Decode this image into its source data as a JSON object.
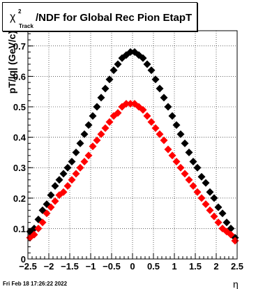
{
  "title": {
    "chi": "χ",
    "superscript": "2",
    "subscript": "Track",
    "text": "/NDF for Global Rec Pion EtapT"
  },
  "footer": {
    "timestamp": "Fri Feb 18 17:26:22 2022"
  },
  "chart_data": {
    "type": "scatter",
    "title": "χ²_Track/NDF for Global Rec Pion EtapT",
    "xlabel": "η",
    "ylabel": "pT/|q| (GeV/c)",
    "xlim": [
      -2.5,
      2.5
    ],
    "ylim": [
      0,
      0.75
    ],
    "x_ticks": [
      -2.5,
      -2,
      -1.5,
      -1,
      -0.5,
      0,
      0.5,
      1,
      1.5,
      2,
      2.5
    ],
    "x_tick_labels": [
      "−2.5",
      "−2",
      "−1.5",
      "−1",
      "−0.5",
      "0",
      "0.5",
      "1",
      "1.5",
      "2",
      "2.5"
    ],
    "y_ticks": [
      0,
      0.1,
      0.2,
      0.3,
      0.4,
      0.5,
      0.6,
      0.7
    ],
    "y_tick_labels": [
      "0",
      "0.1",
      "0.2",
      "0.3",
      "0.4",
      "0.5",
      "0.6",
      "0.7"
    ],
    "grid": true,
    "marker": "diamond",
    "series": [
      {
        "color": "#000000",
        "x": [
          -2.45,
          -2.35,
          -2.25,
          -2.15,
          -2.05,
          -1.95,
          -1.85,
          -1.75,
          -1.65,
          -1.55,
          -1.45,
          -1.35,
          -1.25,
          -1.15,
          -1.05,
          -0.95,
          -0.85,
          -0.75,
          -0.65,
          -0.55,
          -0.45,
          -0.35,
          -0.25,
          -0.15,
          -0.05,
          0.05,
          0.15,
          0.25,
          0.35,
          0.45,
          0.55,
          0.65,
          0.75,
          0.85,
          0.95,
          1.05,
          1.15,
          1.25,
          1.35,
          1.45,
          1.55,
          1.65,
          1.75,
          1.85,
          1.95,
          2.05,
          2.15,
          2.25,
          2.35,
          2.45
        ],
        "y": [
          0.09,
          0.1,
          0.13,
          0.16,
          0.18,
          0.21,
          0.24,
          0.26,
          0.28,
          0.3,
          0.32,
          0.35,
          0.38,
          0.41,
          0.44,
          0.47,
          0.5,
          0.53,
          0.56,
          0.59,
          0.62,
          0.64,
          0.66,
          0.67,
          0.68,
          0.68,
          0.67,
          0.66,
          0.64,
          0.62,
          0.59,
          0.56,
          0.53,
          0.5,
          0.47,
          0.44,
          0.41,
          0.38,
          0.35,
          0.32,
          0.3,
          0.27,
          0.25,
          0.22,
          0.2,
          0.17,
          0.15,
          0.12,
          0.1,
          0.07
        ]
      },
      {
        "color": "#ff0000",
        "x": [
          -2.45,
          -2.35,
          -2.25,
          -2.15,
          -2.05,
          -1.95,
          -1.85,
          -1.75,
          -1.65,
          -1.55,
          -1.45,
          -1.35,
          -1.25,
          -1.15,
          -1.05,
          -0.95,
          -0.85,
          -0.75,
          -0.65,
          -0.55,
          -0.45,
          -0.35,
          -0.25,
          -0.15,
          -0.05,
          0.05,
          0.15,
          0.25,
          0.35,
          0.45,
          0.55,
          0.65,
          0.75,
          0.85,
          0.95,
          1.05,
          1.15,
          1.25,
          1.35,
          1.45,
          1.55,
          1.65,
          1.75,
          1.85,
          1.95,
          2.05,
          2.15,
          2.25,
          2.35,
          2.45
        ],
        "y": [
          0.07,
          0.08,
          0.1,
          0.12,
          0.15,
          0.17,
          0.19,
          0.21,
          0.22,
          0.24,
          0.26,
          0.28,
          0.3,
          0.32,
          0.34,
          0.37,
          0.39,
          0.41,
          0.43,
          0.45,
          0.47,
          0.48,
          0.5,
          0.51,
          0.51,
          0.51,
          0.5,
          0.49,
          0.47,
          0.45,
          0.43,
          0.41,
          0.39,
          0.36,
          0.34,
          0.32,
          0.3,
          0.28,
          0.26,
          0.24,
          0.22,
          0.2,
          0.18,
          0.16,
          0.14,
          0.12,
          0.1,
          0.09,
          0.08,
          0.06
        ]
      }
    ]
  }
}
